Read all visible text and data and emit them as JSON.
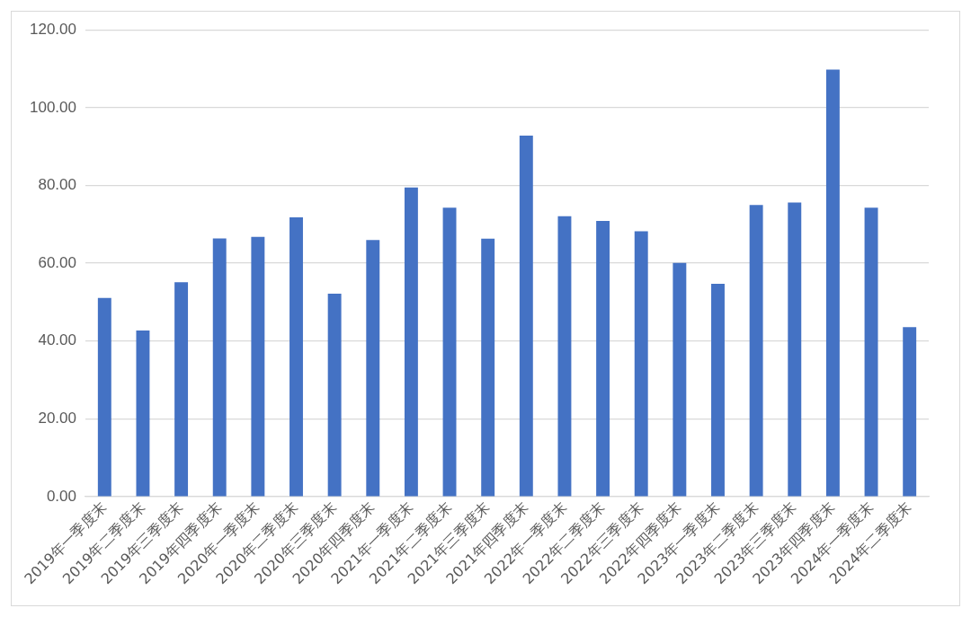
{
  "chart_data": {
    "type": "bar",
    "categories": [
      "2019年一季度末",
      "2019年二季度末",
      "2019年三季度末",
      "2019年四季度末",
      "2020年一季度末",
      "2020年二季度末",
      "2020年三季度末",
      "2020年四季度末",
      "2021年一季度末",
      "2021年二季度末",
      "2021年三季度末",
      "2021年四季度末",
      "2022年一季度末",
      "2022年二季度末",
      "2022年三季度末",
      "2022年四季度末",
      "2023年一季度末",
      "2023年二季度末",
      "2023年三季度末",
      "2023年四季度末",
      "2024年一季度末",
      "2024年二季度末"
    ],
    "values": [
      51.1,
      42.7,
      55.1,
      66.4,
      66.8,
      71.8,
      52.2,
      66.0,
      79.5,
      74.3,
      66.3,
      92.8,
      72.1,
      70.9,
      68.2,
      60.1,
      54.7,
      75.0,
      75.6,
      109.8,
      74.3,
      43.6
    ],
    "color": "#4472c4",
    "ylim": [
      0,
      120
    ],
    "yticks": [
      {
        "value": 0,
        "label": "0.00"
      },
      {
        "value": 20,
        "label": "20.00"
      },
      {
        "value": 40,
        "label": "40.00"
      },
      {
        "value": 60,
        "label": "60.00"
      },
      {
        "value": 80,
        "label": "80.00"
      },
      {
        "value": 100,
        "label": "100.00"
      },
      {
        "value": 120,
        "label": "120.00"
      }
    ],
    "grid": "y"
  }
}
